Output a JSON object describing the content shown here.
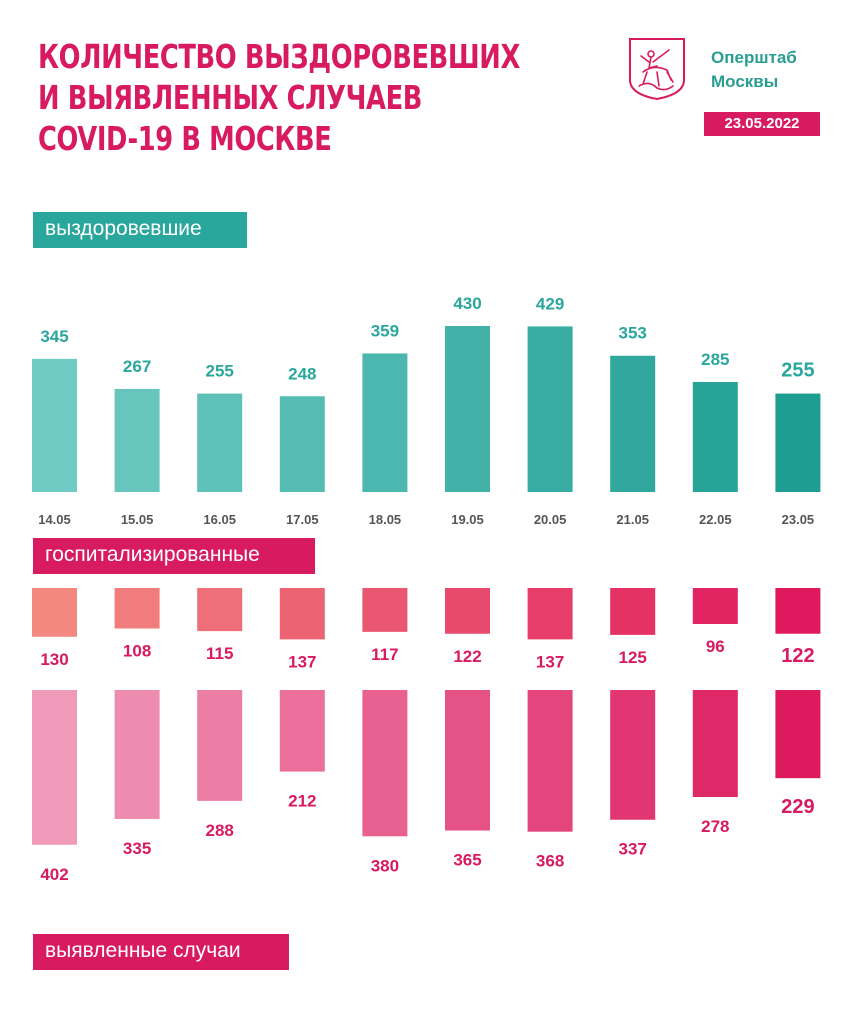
{
  "header": {
    "title_lines": [
      "КОЛИЧЕСТВО ВЫЗДОРОВЕВШИХ",
      "И ВЫЯВЛЕННЫХ СЛУЧАЕВ",
      "COVID-19 В МОСКВЕ"
    ],
    "org_lines": [
      "Оперштаб",
      "Москвы"
    ],
    "date": "23.05.2022",
    "logo_icon": "moscow-coat-of-arms-icon"
  },
  "labels": {
    "recovered": "выздоровевшие",
    "hospitalized": "госпитализированные",
    "cases": "выявленные случаи"
  },
  "colors": {
    "accent": "#d81b60",
    "teal": "#2aa79d",
    "teal_light": "#6fcbc4",
    "teal_dark": "#1e9e92",
    "hosp_light": "#f2887f",
    "hosp_dark": "#e0195e",
    "cases_light": "#f09ab9",
    "cases_dark": "#dd1a5d",
    "date_label": "#555555"
  },
  "chart_data": [
    {
      "type": "bar",
      "name": "выздоровевшие",
      "categories": [
        "14.05",
        "15.05",
        "16.05",
        "17.05",
        "18.05",
        "19.05",
        "20.05",
        "21.05",
        "22.05",
        "23.05"
      ],
      "values": [
        345,
        267,
        255,
        248,
        359,
        430,
        429,
        353,
        285,
        255
      ]
    },
    {
      "type": "bar",
      "name": "госпитализированные",
      "categories": [
        "14.05",
        "15.05",
        "16.05",
        "17.05",
        "18.05",
        "19.05",
        "20.05",
        "21.05",
        "22.05",
        "23.05"
      ],
      "values": [
        130,
        108,
        115,
        137,
        117,
        122,
        137,
        125,
        96,
        122
      ]
    },
    {
      "type": "bar",
      "name": "выявленные случаи",
      "categories": [
        "14.05",
        "15.05",
        "16.05",
        "17.05",
        "18.05",
        "19.05",
        "20.05",
        "21.05",
        "22.05",
        "23.05"
      ],
      "values": [
        402,
        335,
        288,
        212,
        380,
        365,
        368,
        337,
        278,
        229
      ]
    }
  ]
}
